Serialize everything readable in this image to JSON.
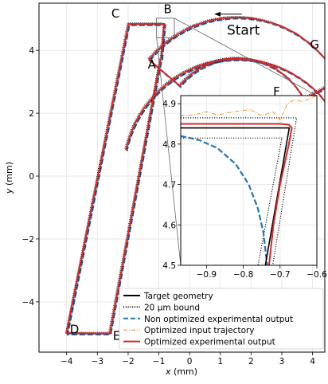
{
  "chart_data": {
    "type": "line",
    "xlabel": "x (mm)",
    "ylabel": "y (mm)",
    "xlim": [
      -4.9,
      4.4
    ],
    "ylim": [
      -5.6,
      5.5
    ],
    "xticks": [
      -4,
      -3,
      -2,
      -1,
      0,
      1,
      2,
      3,
      4
    ],
    "yticks": [
      -4,
      -2,
      0,
      2,
      4
    ],
    "xtick_labels": [
      "−4",
      "−3",
      "−2",
      "−1",
      "0",
      "1",
      "2",
      "3",
      "4"
    ],
    "ytick_labels": [
      "−4",
      "−2",
      "0",
      "2",
      "4"
    ],
    "grid": true,
    "legend_position": "lower-right",
    "legend": [
      {
        "label": "Target geometry",
        "color": "#000000",
        "style": "solid"
      },
      {
        "label": "20 μm bound",
        "color": "#000000",
        "style": "dotted"
      },
      {
        "label": "Non optimized experimental output",
        "color": "#1f77b4",
        "style": "dashed"
      },
      {
        "label": "Optimized input trajectory",
        "color": "#ff7f0e",
        "style": "dashdot"
      },
      {
        "label": "Optimized experimental output",
        "color": "#d62728",
        "style": "solid"
      }
    ],
    "point_labels": [
      {
        "text": "A",
        "x": -0.92,
        "y": 3.73
      },
      {
        "text": "B",
        "x": -0.82,
        "y": 5.0
      },
      {
        "text": "C",
        "x": -2.13,
        "y": 4.84
      },
      {
        "text": "D",
        "x": -4.0,
        "y": -5.0
      },
      {
        "text": "E",
        "x": -2.6,
        "y": -5.0
      },
      {
        "text": "F",
        "x": 2.72,
        "y": 3.02
      },
      {
        "text": "G",
        "x": 4.02,
        "y": 4.1
      }
    ],
    "annotations": [
      {
        "text": "Start",
        "x": 1.75,
        "y": 4.5
      }
    ],
    "start_arrow": {
      "from": [
        1.7,
        5.15
      ],
      "to": [
        0.8,
        5.15
      ]
    },
    "target_path": {
      "x": [
        -0.92,
        -0.82,
        -1.99,
        -4.0,
        -2.6,
        -0.94
      ],
      "y": [
        3.73,
        4.84,
        4.84,
        -5.0,
        -5.0,
        3.73
      ]
    },
    "arc_outer": {
      "center": [
        1.55,
        1.3
      ],
      "radius": 3.75,
      "from_angle_deg": 140,
      "to_angle_deg": 28
    },
    "arc_inner": {
      "center": [
        1.55,
        1.3
      ],
      "radius": 2.45,
      "from_angle_deg": 28,
      "to_angle_deg": 140
    },
    "arc_lower": {
      "center": [
        1.55,
        0.0
      ],
      "radius": 3.72,
      "from_angle_deg": 30,
      "to_angle_deg": 167
    },
    "series": [
      {
        "name": "Target geometry",
        "color": "#000000"
      },
      {
        "name": "20 μm bound",
        "color": "#000000"
      },
      {
        "name": "Non optimized experimental output",
        "color": "#1f77b4"
      },
      {
        "name": "Optimized input trajectory",
        "color": "#ff7f0e"
      },
      {
        "name": "Optimized experimental output",
        "color": "#d62728"
      }
    ],
    "inset": {
      "xlim": [
        -0.97,
        -0.6
      ],
      "ylim": [
        4.5,
        4.92
      ],
      "xticks": [
        -0.9,
        -0.8,
        -0.7,
        -0.6
      ],
      "yticks": [
        4.5,
        4.6,
        4.7,
        4.8,
        4.9
      ],
      "xtick_labels": [
        "−0.9",
        "−0.8",
        "−0.7",
        "−0.6"
      ],
      "ytick_labels": [
        "4.5",
        "4.6",
        "4.7",
        "4.8",
        "4.9"
      ],
      "target": {
        "x": [
          -0.97,
          -0.675,
          -0.74
        ],
        "y": [
          4.84,
          4.84,
          4.5
        ]
      },
      "bound_outer": {
        "x": [
          -0.97,
          -0.655,
          -0.72
        ],
        "y": [
          4.865,
          4.865,
          4.5
        ]
      },
      "bound_inner": {
        "x": [
          -0.97,
          -0.695,
          -0.76
        ],
        "y": [
          4.815,
          4.815,
          4.5
        ]
      },
      "non_optimized": {
        "x": [
          -0.97,
          -0.92,
          -0.87,
          -0.82,
          -0.785,
          -0.76,
          -0.745,
          -0.735
        ],
        "y": [
          4.82,
          4.81,
          4.79,
          4.75,
          4.7,
          4.64,
          4.58,
          4.5
        ]
      },
      "optimized_input": {
        "x": [
          -0.97,
          -0.93,
          -0.9,
          -0.87,
          -0.84,
          -0.81,
          -0.78,
          -0.75,
          -0.72,
          -0.7,
          -0.68,
          -0.66,
          -0.64,
          -0.62,
          -0.6
        ],
        "y": [
          4.87,
          4.873,
          4.88,
          4.872,
          4.878,
          4.882,
          4.885,
          4.87,
          4.88,
          4.86,
          4.9,
          4.91,
          4.905,
          4.912,
          4.92
        ]
      },
      "optimized_output": {
        "x": [
          -0.97,
          -0.7,
          -0.676,
          -0.668,
          -0.676,
          -0.7,
          -0.718,
          -0.73
        ],
        "y": [
          4.85,
          4.85,
          4.848,
          4.84,
          4.8,
          4.7,
          4.6,
          4.5
        ]
      }
    }
  }
}
